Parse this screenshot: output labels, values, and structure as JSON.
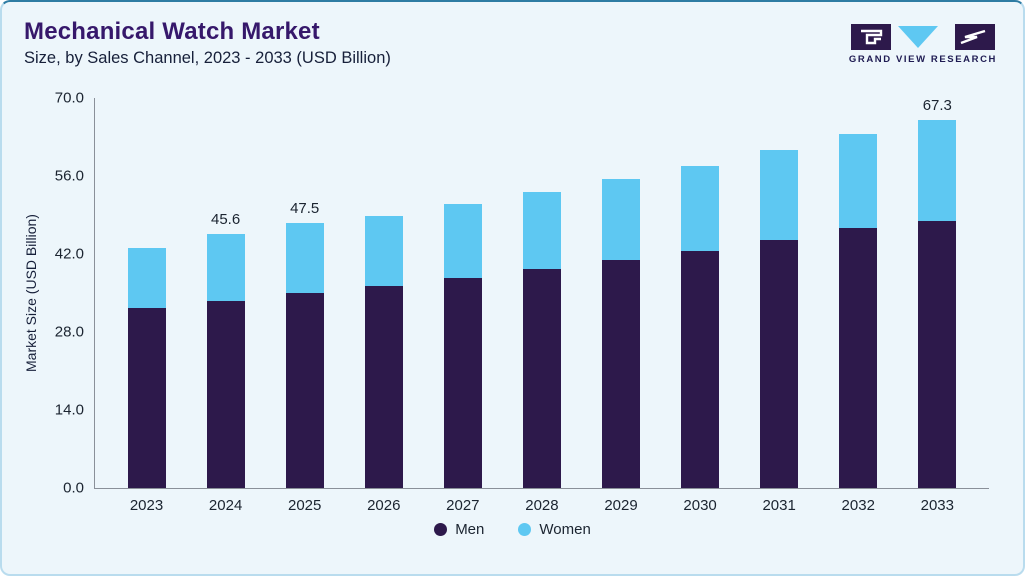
{
  "header": {
    "title": "Mechanical Watch Market",
    "subtitle": "Size, by Sales Channel, 2023 - 2033 (USD Billion)"
  },
  "logo": {
    "text": "GRAND VIEW RESEARCH"
  },
  "colors": {
    "men": "#2d194b",
    "women": "#5ec8f2",
    "title": "#36186b",
    "card_background": "#edf6fb",
    "card_border": "#b9dcee"
  },
  "chart_data": {
    "type": "bar",
    "stacked": true,
    "title": "Mechanical Watch Market Size, by Sales Channel, 2023 - 2033 (USD Billion)",
    "categories": [
      "2023",
      "2024",
      "2025",
      "2026",
      "2027",
      "2028",
      "2029",
      "2030",
      "2031",
      "2032",
      "2033"
    ],
    "series": [
      {
        "name": "Men",
        "color": "#2d194b",
        "values": [
          32.3,
          33.5,
          35.0,
          36.3,
          37.7,
          39.3,
          41.0,
          42.6,
          44.5,
          46.6,
          48.8
        ]
      },
      {
        "name": "Women",
        "color": "#5ec8f2",
        "values": [
          10.7,
          12.1,
          12.5,
          12.6,
          13.3,
          13.9,
          14.4,
          15.2,
          16.1,
          16.9,
          18.5
        ]
      }
    ],
    "totals": [
      43.0,
      45.6,
      47.5,
      48.9,
      51.0,
      53.2,
      55.4,
      57.8,
      60.6,
      63.5,
      67.3
    ],
    "bar_labels": [
      "",
      "45.6",
      "47.5",
      "",
      "",
      "",
      "",
      "",
      "",
      "",
      "67.3"
    ],
    "xlabel": "",
    "ylabel": "Market Size (USD Billion)",
    "ylim": [
      0,
      70
    ],
    "yticks": [
      {
        "value": 0,
        "label": "0.0"
      },
      {
        "value": 14,
        "label": "14.0"
      },
      {
        "value": 28,
        "label": "28.0"
      },
      {
        "value": 42,
        "label": "42.0"
      },
      {
        "value": 56,
        "label": "56.0"
      },
      {
        "value": 70,
        "label": "70.0"
      }
    ],
    "grid": false,
    "legend_position": "bottom"
  }
}
